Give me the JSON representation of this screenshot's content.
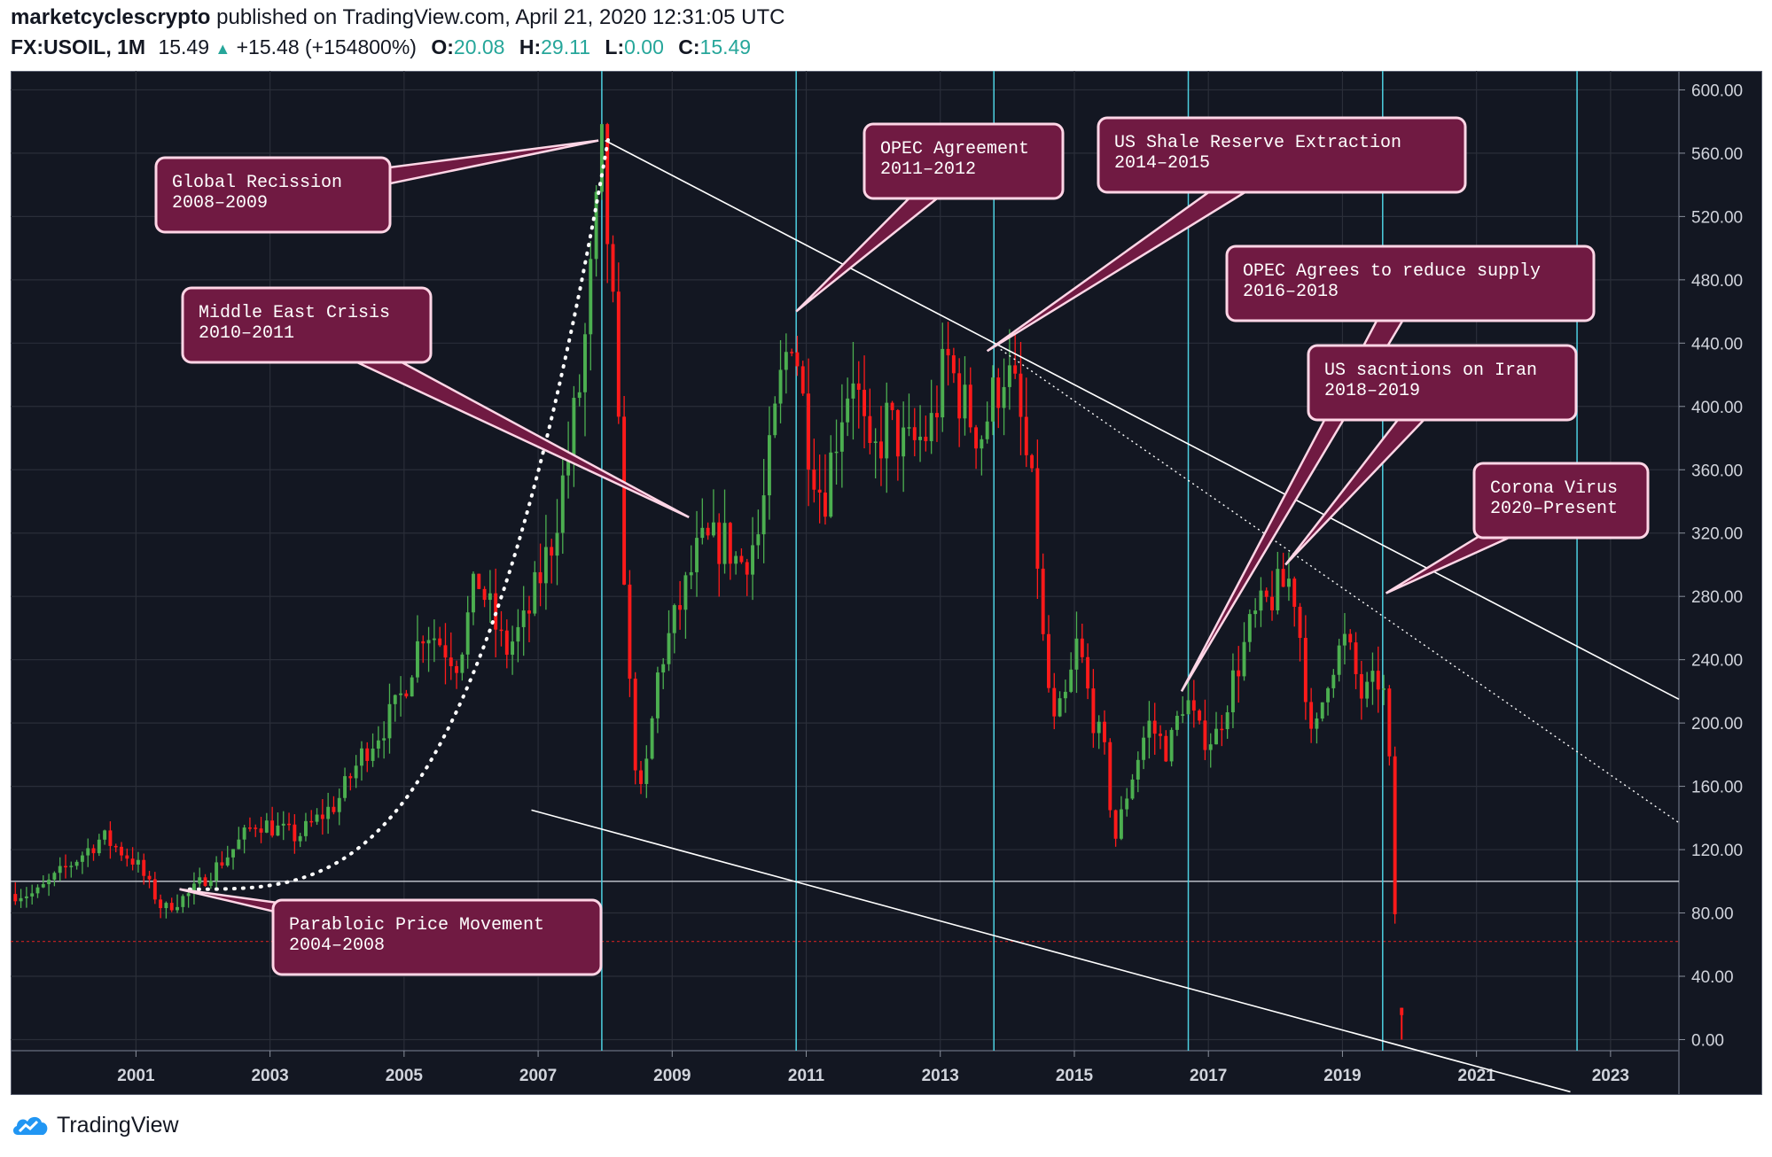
{
  "header": {
    "author": "marketcyclescrypto",
    "published": "published on TradingView.com, April 21, 2020 12:31:05 UTC",
    "symbol": "FX:USOIL, 1M",
    "last": "15.49",
    "change": "+15.48 (+154800%)",
    "o_label": "O:",
    "o_value": "20.08",
    "h_label": "H:",
    "h_value": "29.11",
    "l_label": "L:",
    "l_value": "0.00",
    "c_label": "C:",
    "c_value": "15.49"
  },
  "footer": {
    "brand": "TradingView"
  },
  "colors": {
    "background": "#131722",
    "up": "#4caf50",
    "down": "#ff1a1a",
    "event_line": "#4dd0e1",
    "callout_fill": "#701a42",
    "callout_border": "#ffd6e6",
    "trendline": "#ffffff",
    "ref_line": "#cc2222"
  },
  "chart_data": {
    "type": "candlestick",
    "interval": "1M",
    "x_ticks": [
      "2001",
      "2003",
      "2005",
      "2007",
      "2009",
      "2011",
      "2013",
      "2015",
      "2017",
      "2019",
      "2021",
      "2023"
    ],
    "y_ticks": [
      "0.00",
      "40.00",
      "80.00",
      "120.00",
      "160.00",
      "200.00",
      "240.00",
      "280.00",
      "320.00",
      "360.00",
      "400.00",
      "440.00",
      "480.00",
      "520.00",
      "560.00",
      "600.00"
    ],
    "ylim": [
      -35,
      612
    ],
    "xlim": [
      1999.63,
      2024.52
    ],
    "grid": true,
    "anchors": [
      [
        2000.0,
        92
      ],
      [
        2000.5,
        110
      ],
      [
        2001.0,
        128
      ],
      [
        2001.5,
        112
      ],
      [
        2001.9,
        82
      ],
      [
        2002.3,
        92
      ],
      [
        2002.9,
        118
      ],
      [
        2003.3,
        138
      ],
      [
        2003.9,
        128
      ],
      [
        2004.5,
        150
      ],
      [
        2004.9,
        182
      ],
      [
        2005.4,
        210
      ],
      [
        2005.8,
        262
      ],
      [
        2006.3,
        240
      ],
      [
        2006.6,
        292
      ],
      [
        2007.0,
        245
      ],
      [
        2007.3,
        262
      ],
      [
        2007.7,
        315
      ],
      [
        2007.95,
        370
      ],
      [
        2008.15,
        420
      ],
      [
        2008.3,
        485
      ],
      [
        2008.45,
        555
      ],
      [
        2008.6,
        470
      ],
      [
        2008.75,
        330
      ],
      [
        2008.9,
        190
      ],
      [
        2009.05,
        150
      ],
      [
        2009.3,
        235
      ],
      [
        2009.6,
        272
      ],
      [
        2009.9,
        310
      ],
      [
        2010.3,
        315
      ],
      [
        2010.5,
        300
      ],
      [
        2010.8,
        320
      ],
      [
        2011.1,
        410
      ],
      [
        2011.3,
        455
      ],
      [
        2011.5,
        385
      ],
      [
        2011.75,
        340
      ],
      [
        2012.0,
        395
      ],
      [
        2012.2,
        425
      ],
      [
        2012.45,
        360
      ],
      [
        2012.7,
        390
      ],
      [
        2013.0,
        372
      ],
      [
        2013.35,
        385
      ],
      [
        2013.6,
        430
      ],
      [
        2013.85,
        400
      ],
      [
        2014.1,
        382
      ],
      [
        2014.45,
        425
      ],
      [
        2014.65,
        402
      ],
      [
        2014.9,
        335
      ],
      [
        2015.05,
        240
      ],
      [
        2015.2,
        198
      ],
      [
        2015.4,
        218
      ],
      [
        2015.55,
        252
      ],
      [
        2015.75,
        208
      ],
      [
        2015.95,
        180
      ],
      [
        2016.1,
        125
      ],
      [
        2016.3,
        158
      ],
      [
        2016.6,
        200
      ],
      [
        2016.9,
        182
      ],
      [
        2017.15,
        218
      ],
      [
        2017.35,
        193
      ],
      [
        2017.6,
        190
      ],
      [
        2017.85,
        225
      ],
      [
        2018.15,
        263
      ],
      [
        2018.45,
        280
      ],
      [
        2018.75,
        292
      ],
      [
        2018.9,
        245
      ],
      [
        2019.05,
        182
      ],
      [
        2019.3,
        235
      ],
      [
        2019.55,
        252
      ],
      [
        2019.8,
        215
      ],
      [
        2020.0,
        225
      ],
      [
        2020.08,
        230
      ],
      [
        2020.18,
        195
      ],
      [
        2020.25,
        115
      ],
      [
        2020.3,
        62
      ]
    ],
    "last_bar": {
      "open": 20.08,
      "high": 29.11,
      "low": 0.0,
      "close": 15.49
    },
    "horizontal_lines": [
      {
        "price": 100
      },
      {
        "price": 62,
        "style": "dotted"
      }
    ],
    "event_lines_x": [
      2008.45,
      2011.35,
      2014.3,
      2017.2,
      2020.1,
      2023.0
    ],
    "trendlines": [
      {
        "from": [
          2008.5,
          568
        ],
        "to": [
          2024.52,
          215
        ],
        "style": "solid"
      },
      {
        "from": [
          2014.4,
          436
        ],
        "to": [
          2024.52,
          137
        ],
        "style": "dotted"
      },
      {
        "from": [
          2007.4,
          145
        ],
        "to": [
          2022.9,
          -33
        ],
        "style": "solid"
      }
    ],
    "parabola": [
      [
        2002.3,
        95
      ],
      [
        2008.55,
        570
      ]
    ],
    "annotations": [
      {
        "line1": "Global Recission",
        "line2": "2008–2009",
        "target": [
          2008.4,
          568
        ]
      },
      {
        "line1": "Middle East Crisis",
        "line2": "2010–2011",
        "target": [
          2009.75,
          330
        ]
      },
      {
        "line1": "Parabloic Price Movement",
        "line2": "2004–2008",
        "target": [
          2002.15,
          95
        ]
      },
      {
        "line1": "OPEC Agreement",
        "line2": "2011–2012",
        "target": [
          2011.35,
          460
        ]
      },
      {
        "line1": "US Shale Reserve Extraction",
        "line2": "2014–2015",
        "target": [
          2014.2,
          435
        ]
      },
      {
        "line1": "OPEC Agrees to reduce supply",
        "line2": "2016–2018",
        "target": [
          2017.1,
          220
        ]
      },
      {
        "line1": "US sacntions on Iran",
        "line2": "2018–2019",
        "target": [
          2018.65,
          300
        ]
      },
      {
        "line1": "Corona Virus",
        "line2": "2020–Present",
        "target": [
          2020.15,
          282
        ]
      }
    ]
  }
}
